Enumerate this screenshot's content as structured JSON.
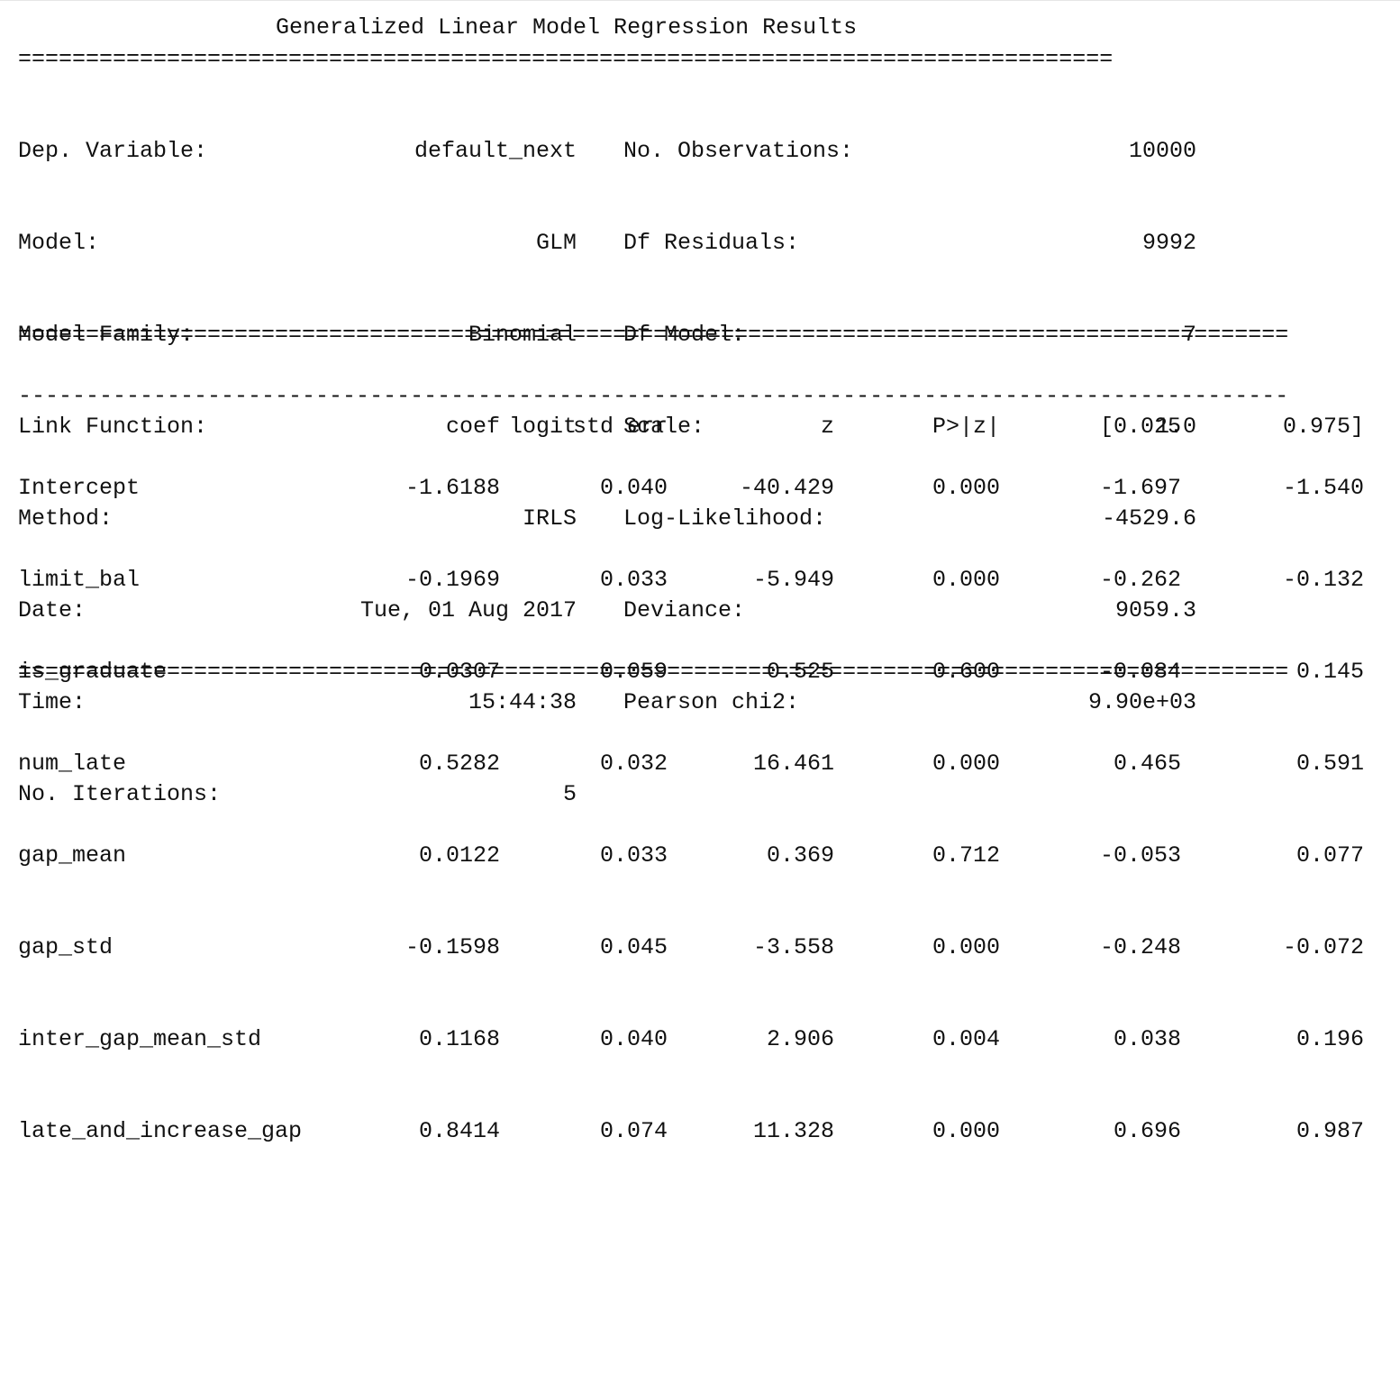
{
  "title": "Generalized Linear Model Regression Results",
  "rules": {
    "double_short": "=================================================================================",
    "double_long": "==============================================================================================",
    "dash_long": "----------------------------------------------------------------------------------------------"
  },
  "info_rows": [
    {
      "label1": "Dep. Variable:",
      "value1": "default_next",
      "label2": "No. Observations:",
      "value2": "10000"
    },
    {
      "label1": "Model:",
      "value1": "GLM",
      "label2": "Df Residuals:",
      "value2": "9992"
    },
    {
      "label1": "Model Family:",
      "value1": "Binomial",
      "label2": "Df Model:",
      "value2": "7"
    },
    {
      "label1": "Link Function:",
      "value1": "logit",
      "label2": "Scale:",
      "value2": "1.0"
    },
    {
      "label1": "Method:",
      "value1": "IRLS",
      "label2": "Log-Likelihood:",
      "value2": "-4529.6"
    },
    {
      "label1": "Date:",
      "value1": "Tue, 01 Aug 2017",
      "label2": "Deviance:",
      "value2": "9059.3"
    },
    {
      "label1": "Time:",
      "value1": "15:44:38",
      "label2": "Pearson chi2:",
      "value2": "9.90e+03"
    },
    {
      "label1": "No. Iterations:",
      "value1": "5",
      "label2": "",
      "value2": ""
    }
  ],
  "coef_headers": [
    "coef",
    "std err",
    "z",
    "P>|z|",
    "[0.025",
    "0.975]"
  ],
  "coef_rows": [
    {
      "name": "Intercept",
      "coef": "-1.6188",
      "std_err": "0.040",
      "z": "-40.429",
      "p": "0.000",
      "lo": "-1.697",
      "hi": "-1.540"
    },
    {
      "name": "limit_bal",
      "coef": "-0.1969",
      "std_err": "0.033",
      "z": "-5.949",
      "p": "0.000",
      "lo": "-0.262",
      "hi": "-0.132"
    },
    {
      "name": "is_graduate",
      "coef": "0.0307",
      "std_err": "0.059",
      "z": "0.525",
      "p": "0.600",
      "lo": "-0.084",
      "hi": "0.145"
    },
    {
      "name": "num_late",
      "coef": "0.5282",
      "std_err": "0.032",
      "z": "16.461",
      "p": "0.000",
      "lo": "0.465",
      "hi": "0.591"
    },
    {
      "name": "gap_mean",
      "coef": "0.0122",
      "std_err": "0.033",
      "z": "0.369",
      "p": "0.712",
      "lo": "-0.053",
      "hi": "0.077"
    },
    {
      "name": "gap_std",
      "coef": "-0.1598",
      "std_err": "0.045",
      "z": "-3.558",
      "p": "0.000",
      "lo": "-0.248",
      "hi": "-0.072"
    },
    {
      "name": "inter_gap_mean_std",
      "coef": "0.1168",
      "std_err": "0.040",
      "z": "2.906",
      "p": "0.004",
      "lo": "0.038",
      "hi": "0.196"
    },
    {
      "name": "late_and_increase_gap",
      "coef": "0.8414",
      "std_err": "0.074",
      "z": "11.328",
      "p": "0.000",
      "lo": "0.696",
      "hi": "0.987"
    }
  ]
}
